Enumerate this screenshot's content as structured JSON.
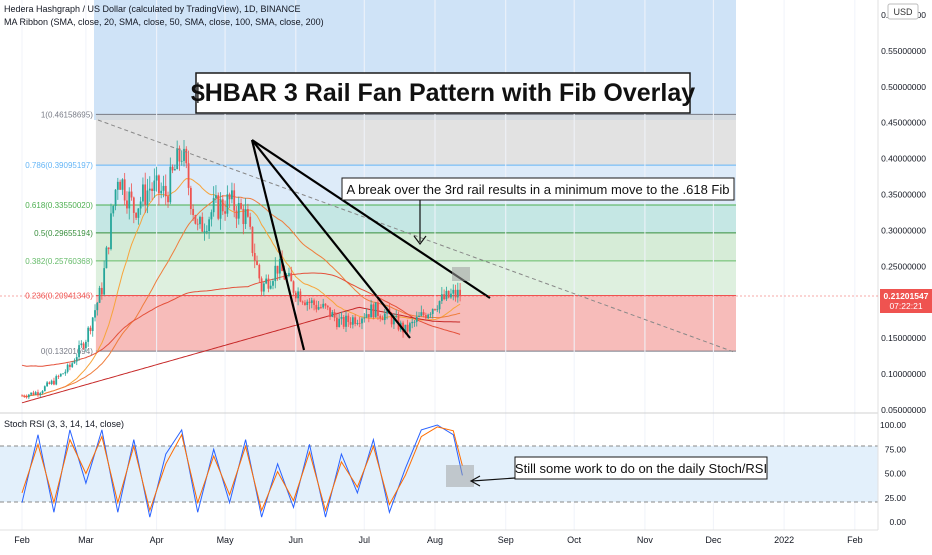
{
  "header": {
    "title": "Hedera Hashgraph / US Dollar (calculated by TradingView), 1D, BINANCE",
    "ma_ribbon": "MA Ribbon (SMA, close, 20, SMA, close, 50, SMA, close, 100, SMA, close, 200)",
    "currency": "USD"
  },
  "annotations": {
    "main_title": "$HBAR 3 Rail Fan Pattern with Fib Overlay",
    "break_note": "A break over the 3rd rail results in a minimum move to the .618 Fib",
    "stoch_note": "Still some work to do on the daily Stoch/RSI"
  },
  "price_badge": {
    "price": "0.21201547",
    "countdown": "07:22:21"
  },
  "stoch_header": {
    "label": "Stoch RSI (3, 3, 14, 14, close)"
  },
  "colors": {
    "up": "#26a69a",
    "down": "#ef5350",
    "ma20": "#f7a43b",
    "ma50": "#ef7d3d",
    "ma100": "#e4503a",
    "ma200": "#c62828",
    "stoch_k": "#2962ff",
    "stoch_d": "#ff6d00",
    "fib_red": "#f4a6a3",
    "fib_green": "#c8e6c9",
    "fib_teal": "#b2dfdb",
    "fib_blue": "#cfe3f7",
    "fib_gray": "#d6d6d6"
  },
  "chart_data": [
    {
      "type": "candlestick",
      "x_range": [
        "2021-02-01",
        "2022-02-28"
      ],
      "ylim": [
        0.05,
        0.6
      ],
      "y_ticks": [
        "0.60000000",
        "0.55000000",
        "0.50000000",
        "0.45000000",
        "0.40000000",
        "0.35000000",
        "0.30000000",
        "0.25000000",
        "0.15000000",
        "0.10000000",
        "0.05000000"
      ],
      "x_ticks": [
        {
          "label": "Feb",
          "date": "2021-02-01"
        },
        {
          "label": "Mar",
          "date": "2021-03-01"
        },
        {
          "label": "Apr",
          "date": "2021-04-01"
        },
        {
          "label": "May",
          "date": "2021-05-01"
        },
        {
          "label": "Jun",
          "date": "2021-06-01"
        },
        {
          "label": "Jul",
          "date": "2021-07-01"
        },
        {
          "label": "Aug",
          "date": "2021-08-01"
        },
        {
          "label": "Sep",
          "date": "2021-09-01"
        },
        {
          "label": "Oct",
          "date": "2021-10-01"
        },
        {
          "label": "Nov",
          "date": "2021-11-01"
        },
        {
          "label": "Dec",
          "date": "2021-12-01"
        },
        {
          "label": "2022",
          "date": "2022-01-01"
        },
        {
          "label": "Feb",
          "date": "2022-02-01"
        }
      ],
      "fib_levels": [
        {
          "label": "1(0.46158695)",
          "value": 0.46158695
        },
        {
          "label": "0.786(0.39095197)",
          "value": 0.39095197
        },
        {
          "label": "0.618(0.33550020)",
          "value": 0.3355002
        },
        {
          "label": "0.5(0.29655194)",
          "value": 0.29655194
        },
        {
          "label": "0.382(0.25760368)",
          "value": 0.25760368
        },
        {
          "label": "0.236(0.20941346)",
          "value": 0.20941346
        },
        {
          "label": "0(0.13201694)",
          "value": 0.13201694
        }
      ],
      "fib_range": {
        "start": "2021-03-01",
        "end": "2021-10-12"
      },
      "series": [
        {
          "name": "Close",
          "points": [
            [
              "2021-02-01",
              0.07
            ],
            [
              "2021-02-08",
              0.075
            ],
            [
              "2021-02-15",
              0.09
            ],
            [
              "2021-02-22",
              0.11
            ],
            [
              "2021-03-01",
              0.15
            ],
            [
              "2021-03-08",
              0.22
            ],
            [
              "2021-03-15",
              0.38
            ],
            [
              "2021-03-22",
              0.33
            ],
            [
              "2021-03-29",
              0.36
            ],
            [
              "2021-04-05",
              0.35
            ],
            [
              "2021-04-12",
              0.41
            ],
            [
              "2021-04-19",
              0.3
            ],
            [
              "2021-04-26",
              0.33
            ],
            [
              "2021-05-03",
              0.34
            ],
            [
              "2021-05-10",
              0.32
            ],
            [
              "2021-05-17",
              0.22
            ],
            [
              "2021-05-24",
              0.25
            ],
            [
              "2021-05-31",
              0.22
            ],
            [
              "2021-06-07",
              0.2
            ],
            [
              "2021-06-14",
              0.19
            ],
            [
              "2021-06-21",
              0.17
            ],
            [
              "2021-06-28",
              0.18
            ],
            [
              "2021-07-05",
              0.19
            ],
            [
              "2021-07-12",
              0.18
            ],
            [
              "2021-07-19",
              0.16
            ],
            [
              "2021-07-26",
              0.18
            ],
            [
              "2021-08-02",
              0.2
            ],
            [
              "2021-08-09",
              0.21
            ],
            [
              "2021-08-13",
              0.212
            ]
          ]
        }
      ],
      "price_marker": 0.21201547
    },
    {
      "type": "line",
      "title": "Stoch RSI (3, 3, 14, 14, close)",
      "ylim": [
        -5,
        105
      ],
      "y_ticks": [
        "100.00",
        "75.00",
        "50.00",
        "25.00",
        "0.00"
      ],
      "bands": [
        80,
        20
      ],
      "series": [
        {
          "name": "K",
          "points": [
            [
              "2021-02-01",
              20
            ],
            [
              "2021-02-08",
              90
            ],
            [
              "2021-02-15",
              10
            ],
            [
              "2021-02-22",
              95
            ],
            [
              "2021-03-01",
              40
            ],
            [
              "2021-03-08",
              95
            ],
            [
              "2021-03-15",
              10
            ],
            [
              "2021-03-22",
              85
            ],
            [
              "2021-03-29",
              5
            ],
            [
              "2021-04-05",
              70
            ],
            [
              "2021-04-12",
              95
            ],
            [
              "2021-04-19",
              10
            ],
            [
              "2021-04-26",
              75
            ],
            [
              "2021-05-03",
              20
            ],
            [
              "2021-05-10",
              85
            ],
            [
              "2021-05-17",
              5
            ],
            [
              "2021-05-24",
              60
            ],
            [
              "2021-05-31",
              15
            ],
            [
              "2021-06-07",
              80
            ],
            [
              "2021-06-14",
              5
            ],
            [
              "2021-06-21",
              70
            ],
            [
              "2021-06-28",
              30
            ],
            [
              "2021-07-05",
              85
            ],
            [
              "2021-07-12",
              10
            ],
            [
              "2021-07-19",
              55
            ],
            [
              "2021-07-26",
              95
            ],
            [
              "2021-08-02",
              100
            ],
            [
              "2021-08-09",
              90
            ],
            [
              "2021-08-13",
              48
            ]
          ]
        },
        {
          "name": "D",
          "points": [
            [
              "2021-02-01",
              30
            ],
            [
              "2021-02-08",
              80
            ],
            [
              "2021-02-15",
              20
            ],
            [
              "2021-02-22",
              85
            ],
            [
              "2021-03-01",
              50
            ],
            [
              "2021-03-08",
              88
            ],
            [
              "2021-03-15",
              20
            ],
            [
              "2021-03-22",
              78
            ],
            [
              "2021-03-29",
              12
            ],
            [
              "2021-04-05",
              60
            ],
            [
              "2021-04-12",
              90
            ],
            [
              "2021-04-19",
              20
            ],
            [
              "2021-04-26",
              68
            ],
            [
              "2021-05-03",
              28
            ],
            [
              "2021-05-10",
              78
            ],
            [
              "2021-05-17",
              12
            ],
            [
              "2021-05-24",
              52
            ],
            [
              "2021-05-31",
              22
            ],
            [
              "2021-06-07",
              72
            ],
            [
              "2021-06-14",
              12
            ],
            [
              "2021-06-21",
              62
            ],
            [
              "2021-06-28",
              36
            ],
            [
              "2021-07-05",
              78
            ],
            [
              "2021-07-12",
              18
            ],
            [
              "2021-07-19",
              48
            ],
            [
              "2021-07-26",
              88
            ],
            [
              "2021-08-02",
              98
            ],
            [
              "2021-08-09",
              94
            ],
            [
              "2021-08-13",
              58
            ]
          ]
        }
      ]
    }
  ]
}
